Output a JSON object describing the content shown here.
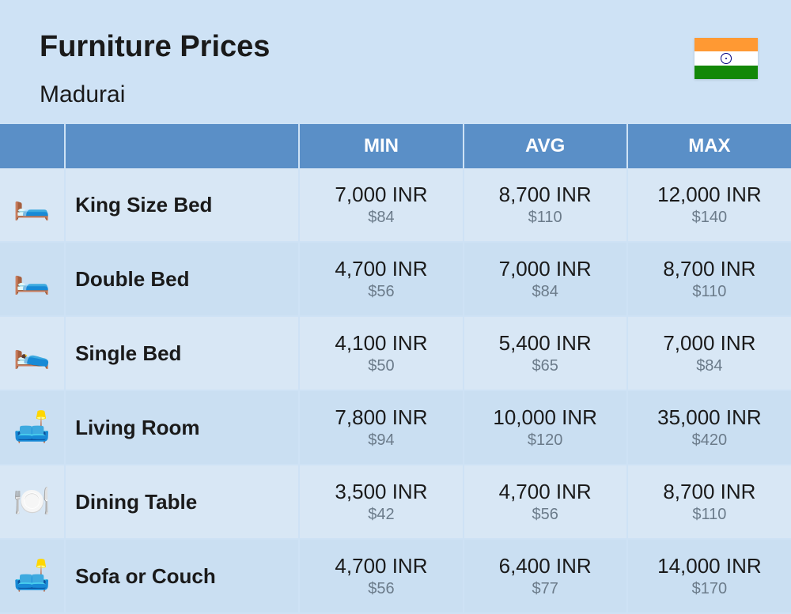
{
  "header": {
    "title": "Furniture Prices",
    "subtitle": "Madurai",
    "flag_colors": {
      "top": "#ff9933",
      "mid": "#ffffff",
      "bot": "#138808",
      "chakra": "#000080"
    }
  },
  "table": {
    "columns": [
      "MIN",
      "AVG",
      "MAX"
    ],
    "header_bg": "#5a8fc7",
    "header_fg": "#ffffff",
    "row_bg_odd": "#d8e7f5",
    "row_bg_even": "#cadff2",
    "border_color": "#cee2f5",
    "price_main_color": "#1a1a1a",
    "price_sub_color": "#6b7b8a",
    "name_fontsize": 26,
    "price_main_fontsize": 26,
    "price_sub_fontsize": 20,
    "rows": [
      {
        "icon": "🛏️",
        "name": "King Size Bed",
        "min_inr": "7,000 INR",
        "min_usd": "$84",
        "avg_inr": "8,700 INR",
        "avg_usd": "$110",
        "max_inr": "12,000 INR",
        "max_usd": "$140"
      },
      {
        "icon": "🛏️",
        "name": "Double Bed",
        "min_inr": "4,700 INR",
        "min_usd": "$56",
        "avg_inr": "7,000 INR",
        "avg_usd": "$84",
        "max_inr": "8,700 INR",
        "max_usd": "$110"
      },
      {
        "icon": "🛌",
        "name": "Single Bed",
        "min_inr": "4,100 INR",
        "min_usd": "$50",
        "avg_inr": "5,400 INR",
        "avg_usd": "$65",
        "max_inr": "7,000 INR",
        "max_usd": "$84"
      },
      {
        "icon": "🛋️",
        "name": "Living Room",
        "min_inr": "7,800 INR",
        "min_usd": "$94",
        "avg_inr": "10,000 INR",
        "avg_usd": "$120",
        "max_inr": "35,000 INR",
        "max_usd": "$420"
      },
      {
        "icon": "🍽️",
        "name": "Dining Table",
        "min_inr": "3,500 INR",
        "min_usd": "$42",
        "avg_inr": "4,700 INR",
        "avg_usd": "$56",
        "max_inr": "8,700 INR",
        "max_usd": "$110"
      },
      {
        "icon": "🛋️",
        "name": "Sofa or Couch",
        "min_inr": "4,700 INR",
        "min_usd": "$56",
        "avg_inr": "6,400 INR",
        "avg_usd": "$77",
        "max_inr": "14,000 INR",
        "max_usd": "$170"
      }
    ]
  },
  "background_color": "#cee2f5"
}
